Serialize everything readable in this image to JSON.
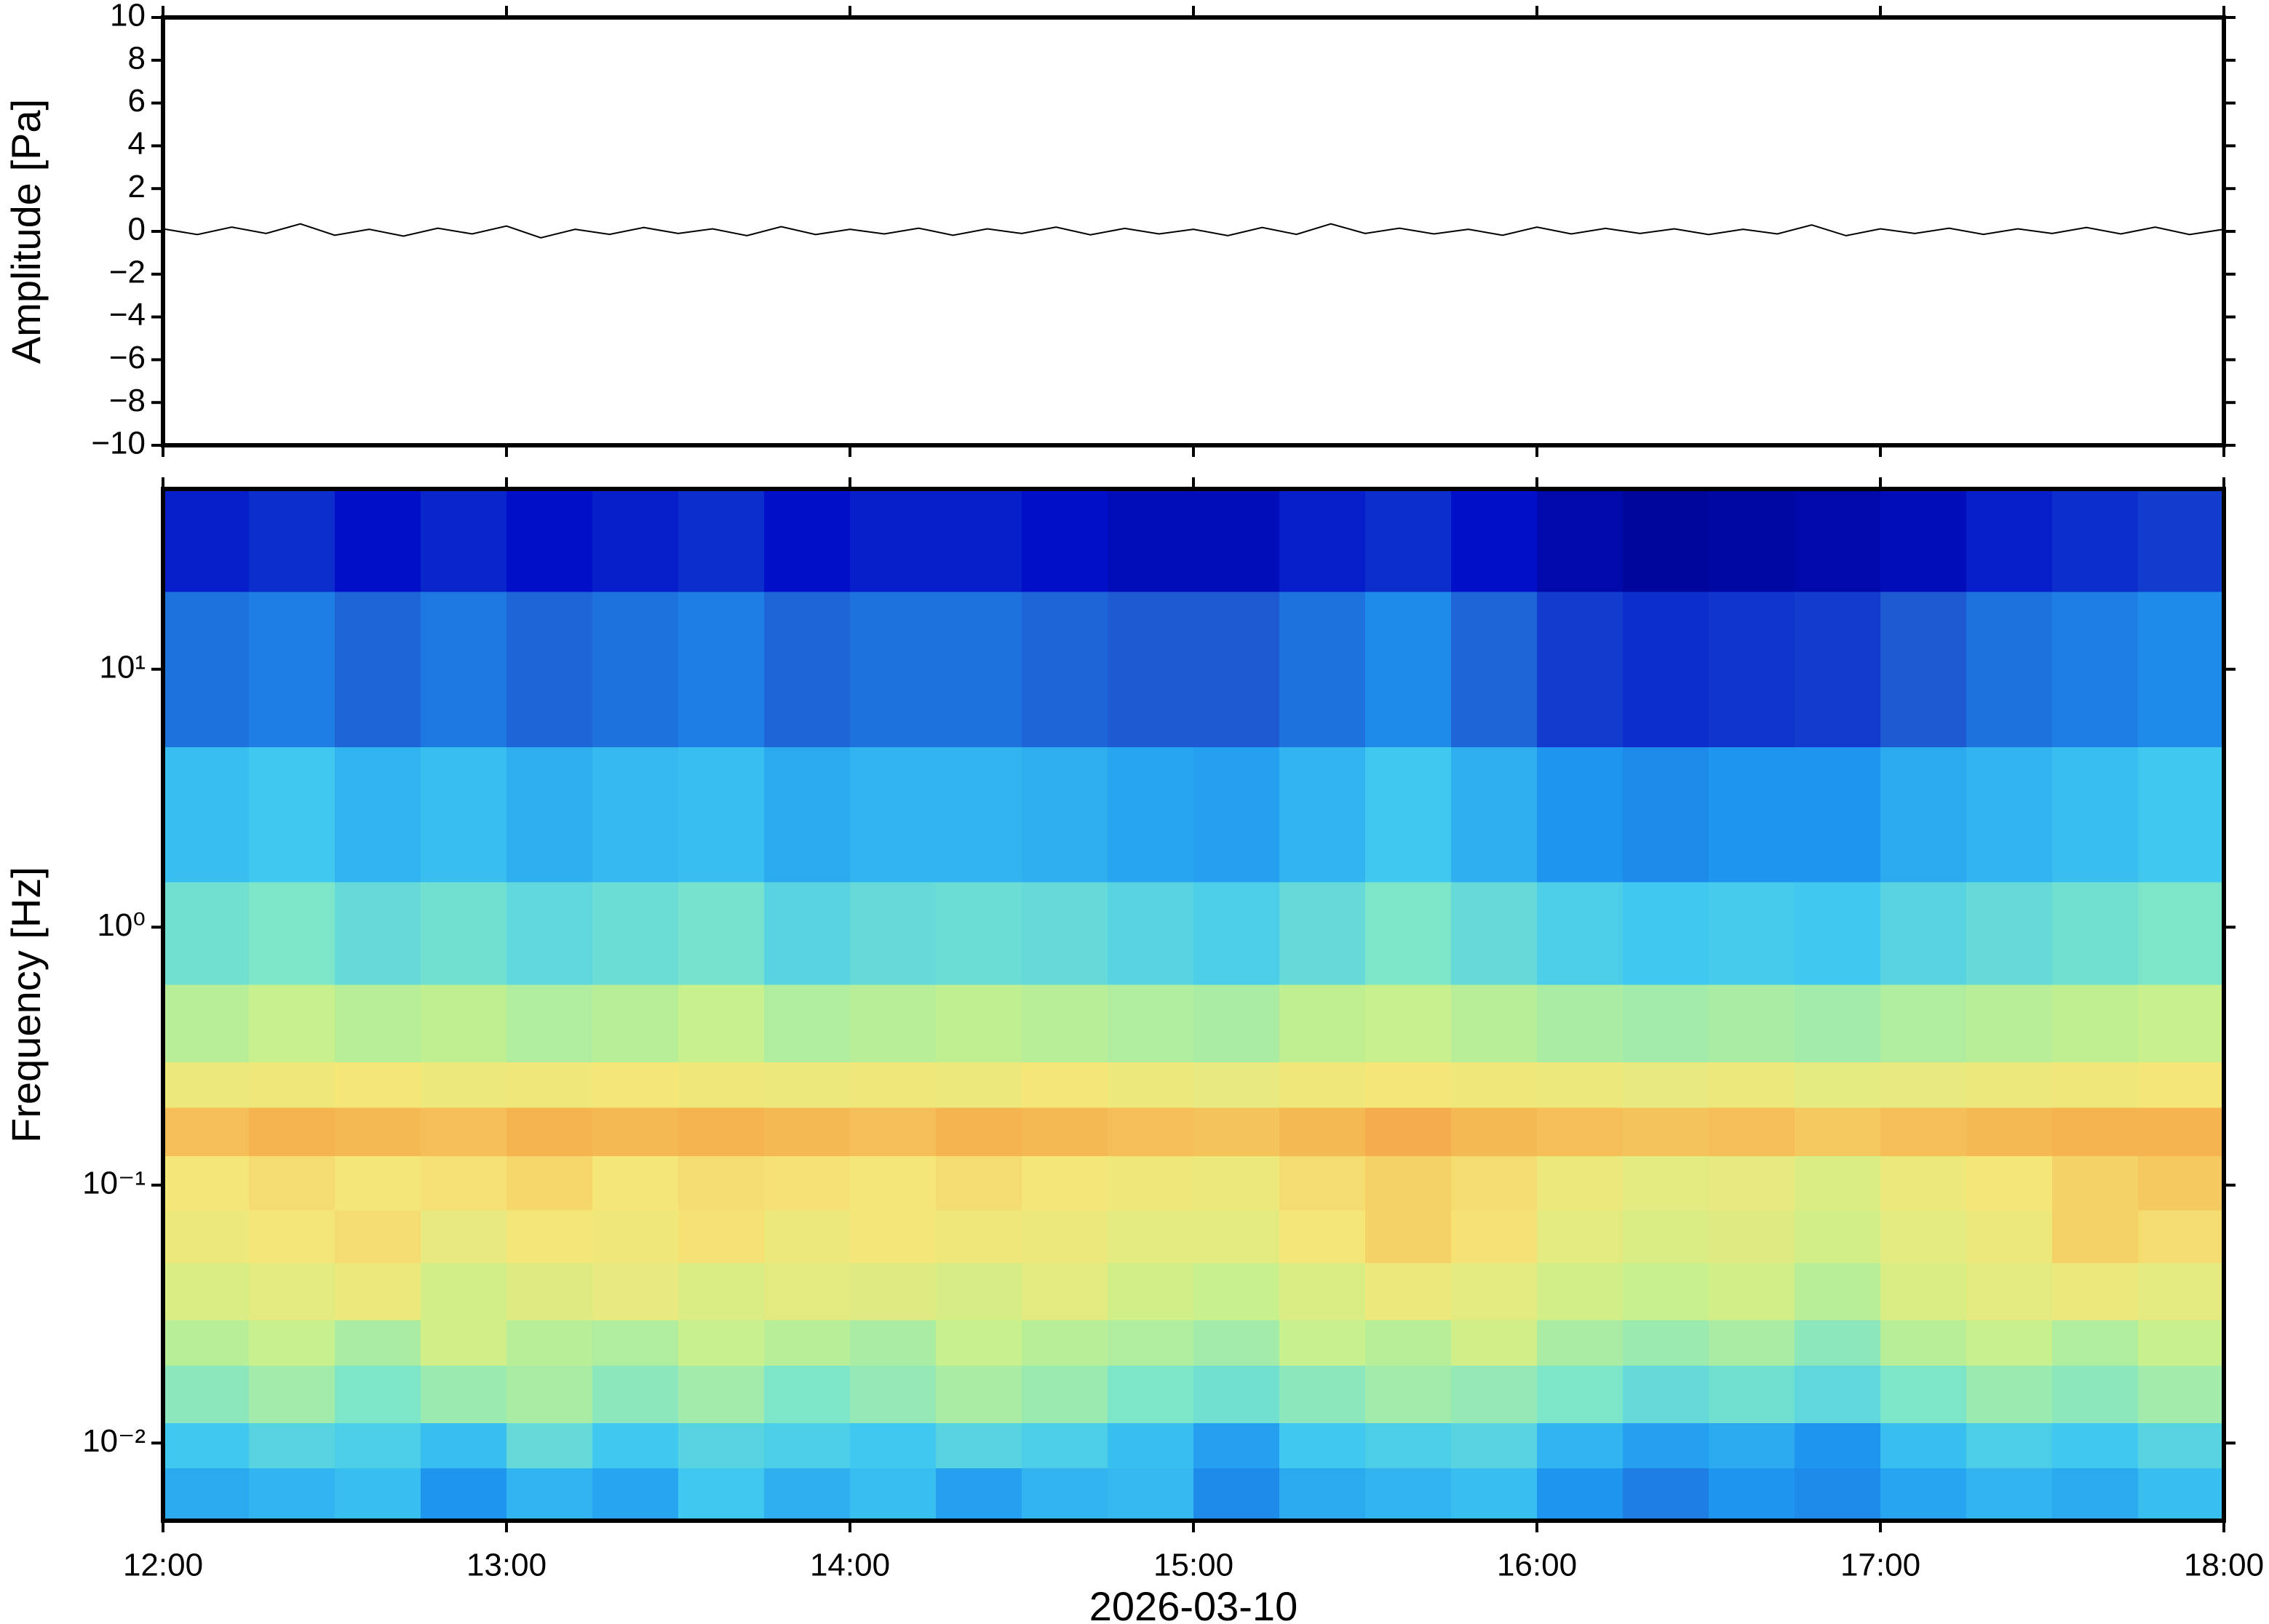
{
  "chart_data": [
    {
      "type": "line",
      "ylabel": "Amplitude [Pa]",
      "ylim": [
        -10,
        10
      ],
      "yticks": [
        {
          "value": -10,
          "label": "−10"
        },
        {
          "value": -8,
          "label": "−8"
        },
        {
          "value": -6,
          "label": "−6"
        },
        {
          "value": -4,
          "label": "−4"
        },
        {
          "value": -2,
          "label": "−2"
        },
        0,
        2,
        4,
        6,
        8,
        10
      ],
      "xlim": [
        12,
        18
      ],
      "xticks": [
        12,
        13,
        14,
        15,
        16,
        17,
        18
      ],
      "color": "#000000",
      "x": [
        12,
        12.1,
        12.2,
        12.3,
        12.4,
        12.5,
        12.6,
        12.7,
        12.8,
        12.9,
        13,
        13.1,
        13.2,
        13.3,
        13.4,
        13.5,
        13.6,
        13.7,
        13.8,
        13.9,
        14,
        14.1,
        14.2,
        14.3,
        14.4,
        14.5,
        14.6,
        14.7,
        14.8,
        14.9,
        15,
        15.1,
        15.2,
        15.3,
        15.4,
        15.5,
        15.6,
        15.7,
        15.8,
        15.9,
        16,
        16.1,
        16.2,
        16.3,
        16.4,
        16.5,
        16.6,
        16.7,
        16.8,
        16.9,
        17,
        17.1,
        17.2,
        17.3,
        17.4,
        17.5,
        17.6,
        17.7,
        17.8,
        17.9,
        18
      ],
      "values": [
        0.12,
        -0.15,
        0.2,
        -0.1,
        0.35,
        -0.18,
        0.1,
        -0.22,
        0.15,
        -0.12,
        0.25,
        -0.3,
        0.1,
        -0.14,
        0.18,
        -0.1,
        0.12,
        -0.2,
        0.22,
        -0.15,
        0.1,
        -0.12,
        0.15,
        -0.18,
        0.12,
        -0.1,
        0.2,
        -0.16,
        0.14,
        -0.12,
        0.1,
        -0.2,
        0.18,
        -0.14,
        0.35,
        -0.1,
        0.15,
        -0.12,
        0.1,
        -0.18,
        0.2,
        -0.12,
        0.14,
        -0.1,
        0.12,
        -0.15,
        0.1,
        -0.12,
        0.3,
        -0.2,
        0.12,
        -0.1,
        0.15,
        -0.14,
        0.12,
        -0.1,
        0.18,
        -0.12,
        0.2,
        -0.15,
        0.1
      ]
    },
    {
      "type": "heatmap",
      "ylabel": "Frequency [Hz]",
      "xlabel": "2026-03-10",
      "log_y": true,
      "ylim": [
        0.005,
        50
      ],
      "yticks": [
        {
          "value": 0.01,
          "label": "10⁻²"
        },
        {
          "value": 0.1,
          "label": "10⁻¹"
        },
        {
          "value": 1,
          "label": "10⁰"
        },
        {
          "value": 10,
          "label": "10¹"
        }
      ],
      "xlim": [
        12,
        18
      ],
      "xticks": [
        {
          "value": 12,
          "label": "12:00"
        },
        {
          "value": 13,
          "label": "13:00"
        },
        {
          "value": 14,
          "label": "14:00"
        },
        {
          "value": 15,
          "label": "15:00"
        },
        {
          "value": 16,
          "label": "16:00"
        },
        {
          "value": 17,
          "label": "17:00"
        },
        {
          "value": 18,
          "label": "18:00"
        }
      ],
      "xbins": [
        12,
        12.25,
        12.5,
        12.75,
        13,
        13.25,
        13.5,
        13.75,
        14,
        14.25,
        14.5,
        14.75,
        15,
        15.25,
        15.5,
        15.75,
        16,
        16.25,
        16.5,
        16.75,
        17,
        17.25,
        17.5,
        17.75,
        18
      ],
      "ybins": [
        0.005,
        0.008,
        0.012,
        0.02,
        0.03,
        0.05,
        0.08,
        0.13,
        0.2,
        0.3,
        0.6,
        1.5,
        5,
        20,
        50
      ],
      "zlim": [
        0,
        100
      ],
      "colormap": [
        "#00007f",
        "#0010c8",
        "#1e5ad2",
        "#1e96f0",
        "#40c8f0",
        "#7de6c8",
        "#c8f08c",
        "#f5e678",
        "#f5b450",
        "#e8663c",
        "#a01414"
      ],
      "z": [
        [
          34,
          36,
          38,
          30,
          36,
          33,
          40,
          35,
          38,
          32,
          36,
          37,
          28,
          34,
          36,
          38,
          30,
          26,
          30,
          28,
          33,
          36,
          34,
          38
        ],
        [
          40,
          44,
          42,
          38,
          46,
          40,
          44,
          42,
          40,
          44,
          42,
          38,
          32,
          40,
          42,
          44,
          36,
          32,
          34,
          30,
          38,
          42,
          40,
          44
        ],
        [
          52,
          55,
          50,
          54,
          56,
          52,
          55,
          50,
          53,
          56,
          54,
          50,
          48,
          52,
          55,
          53,
          50,
          46,
          48,
          45,
          50,
          54,
          52,
          55
        ],
        [
          58,
          60,
          56,
          62,
          58,
          57,
          60,
          58,
          56,
          60,
          58,
          57,
          55,
          60,
          58,
          62,
          56,
          54,
          56,
          52,
          58,
          60,
          57,
          60
        ],
        [
          64,
          66,
          68,
          62,
          65,
          67,
          64,
          66,
          65,
          63,
          66,
          62,
          60,
          64,
          68,
          66,
          62,
          60,
          62,
          58,
          64,
          66,
          68,
          66
        ],
        [
          68,
          70,
          72,
          67,
          70,
          69,
          71,
          68,
          70,
          69,
          68,
          66,
          66,
          70,
          74,
          71,
          66,
          64,
          65,
          62,
          66,
          68,
          74,
          72
        ],
        [
          70,
          72,
          70,
          71,
          73,
          70,
          72,
          71,
          70,
          72,
          70,
          69,
          68,
          72,
          74,
          72,
          68,
          66,
          67,
          64,
          68,
          70,
          74,
          76
        ],
        [
          78,
          80,
          79,
          78,
          80,
          79,
          80,
          79,
          78,
          80,
          79,
          78,
          77,
          79,
          81,
          79,
          78,
          77,
          78,
          76,
          78,
          79,
          80,
          80
        ],
        [
          68,
          69,
          70,
          68,
          69,
          70,
          69,
          68,
          69,
          68,
          70,
          68,
          67,
          69,
          70,
          69,
          68,
          67,
          68,
          66,
          67,
          68,
          69,
          70
        ],
        [
          58,
          60,
          58,
          59,
          57,
          58,
          60,
          57,
          58,
          59,
          58,
          57,
          56,
          59,
          60,
          58,
          56,
          55,
          56,
          55,
          57,
          58,
          59,
          60
        ],
        [
          48,
          50,
          46,
          48,
          45,
          47,
          49,
          44,
          46,
          47,
          46,
          44,
          42,
          46,
          50,
          46,
          42,
          40,
          41,
          40,
          44,
          46,
          48,
          50
        ],
        [
          38,
          40,
          36,
          38,
          35,
          37,
          38,
          34,
          36,
          36,
          35,
          33,
          32,
          36,
          40,
          35,
          30,
          28,
          30,
          30,
          34,
          36,
          38,
          40
        ],
        [
          24,
          26,
          22,
          25,
          22,
          24,
          26,
          22,
          24,
          24,
          22,
          20,
          20,
          24,
          28,
          22,
          16,
          14,
          15,
          16,
          20,
          24,
          26,
          28
        ],
        [
          12,
          14,
          10,
          13,
          10,
          12,
          14,
          10,
          12,
          12,
          10,
          8,
          8,
          12,
          14,
          10,
          6,
          4,
          5,
          6,
          8,
          12,
          14,
          16
        ]
      ]
    }
  ]
}
